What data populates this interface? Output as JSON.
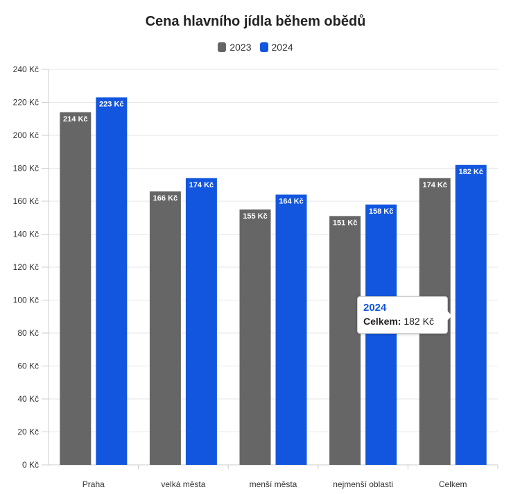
{
  "chart_data": {
    "type": "bar",
    "title": "Cena hlavního jídla během obědů",
    "categories": [
      "Praha",
      "velká města",
      "menší města",
      "nejmenší oblasti",
      "Celkem"
    ],
    "series": [
      {
        "name": "2023",
        "color": "#666666",
        "values": [
          214,
          166,
          155,
          151,
          174
        ],
        "labels": [
          "214 Kč",
          "166 Kč",
          "155 Kč",
          "151 Kč",
          "174 Kč"
        ]
      },
      {
        "name": "2024",
        "color": "#1256df",
        "values": [
          223,
          174,
          164,
          158,
          182
        ],
        "labels": [
          "223 Kč",
          "174 Kč",
          "164 Kč",
          "158 Kč",
          "182 Kč"
        ]
      }
    ],
    "ylim": [
      0,
      240
    ],
    "yticks": [
      0,
      20,
      40,
      60,
      80,
      100,
      120,
      140,
      160,
      180,
      200,
      220,
      240
    ],
    "ytick_labels": [
      "0 Kč",
      "20 Kč",
      "40 Kč",
      "60 Kč",
      "80 Kč",
      "100 Kč",
      "120 Kč",
      "140 Kč",
      "160 Kč",
      "180 Kč",
      "200 Kč",
      "220 Kč",
      "240 Kč"
    ],
    "xlabel": "",
    "ylabel": "",
    "grid": true,
    "legend": "top-center"
  },
  "tooltip": {
    "series": "2024",
    "label": "Celkem:",
    "value": "182 Kč"
  }
}
